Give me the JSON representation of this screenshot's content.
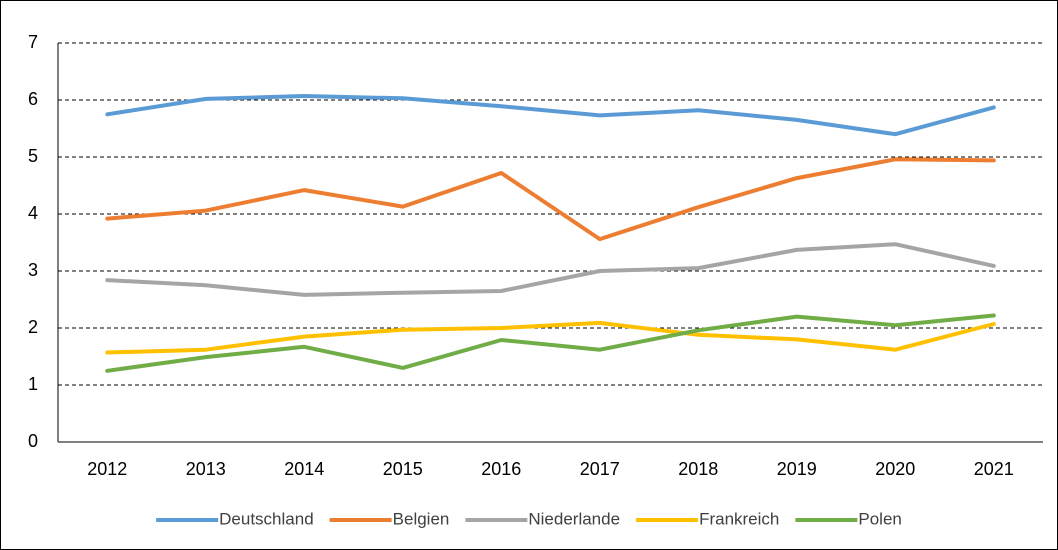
{
  "chart_data": {
    "type": "line",
    "categories": [
      "2012",
      "2013",
      "2014",
      "2015",
      "2016",
      "2017",
      "2018",
      "2019",
      "2020",
      "2021"
    ],
    "series": [
      {
        "name": "Deutschland",
        "color": "#5b9bd5",
        "values": [
          5.75,
          6.02,
          6.07,
          6.03,
          5.89,
          5.73,
          5.82,
          5.65,
          5.4,
          5.87
        ]
      },
      {
        "name": "Belgien",
        "color": "#ed7d31",
        "values": [
          3.92,
          4.06,
          4.42,
          4.13,
          4.72,
          3.56,
          4.12,
          4.63,
          4.96,
          4.94
        ]
      },
      {
        "name": "Niederlande",
        "color": "#a5a5a5",
        "values": [
          2.84,
          2.75,
          2.58,
          2.62,
          2.65,
          3.0,
          3.05,
          3.37,
          3.47,
          3.09
        ]
      },
      {
        "name": "Frankreich",
        "color": "#ffc000",
        "values": [
          1.57,
          1.62,
          1.85,
          1.97,
          2.0,
          2.09,
          1.88,
          1.8,
          1.62,
          2.07
        ]
      },
      {
        "name": "Polen",
        "color": "#70ad47",
        "values": [
          1.25,
          1.49,
          1.67,
          1.3,
          1.79,
          1.62,
          1.96,
          2.2,
          2.05,
          2.22
        ]
      }
    ],
    "ylim": [
      0,
      7
    ],
    "yticks": [
      0,
      1,
      2,
      3,
      4,
      5,
      6,
      7
    ],
    "grid": true,
    "legend": "bottom"
  }
}
